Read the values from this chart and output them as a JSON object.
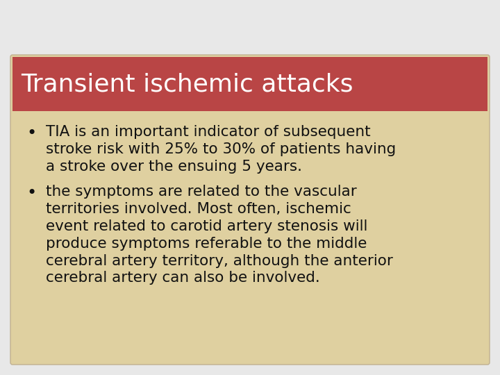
{
  "title": "Transient ischemic attacks",
  "title_bg_color": "#b94545",
  "title_text_color": "#ffffff",
  "body_bg_color": "#dfd0a0",
  "slide_bg_color": "#d8c898",
  "outer_bg_color": "#e8e8e8",
  "text_color": "#111111",
  "title_fontsize": 26,
  "body_fontsize": 15.5,
  "bullet_symbol": "•",
  "bullet1_lines": [
    "TIA is an important indicator of subsequent",
    "stroke risk with 25% to 30% of patients having",
    "a stroke over the ensuing 5 years."
  ],
  "bullet2_lines": [
    "the symptoms are related to the vascular",
    "territories involved. Most often, ischemic",
    "event related to carotid artery stenosis will",
    "produce symptoms referable to the middle",
    "cerebral artery territory, although the anterior",
    "cerebral artery can also be involved."
  ]
}
